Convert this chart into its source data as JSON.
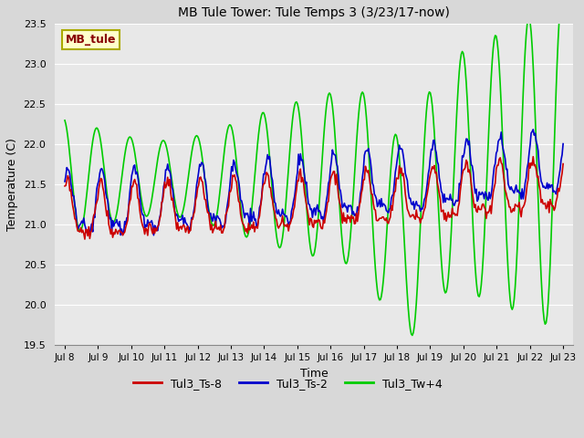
{
  "title": "MB Tule Tower: Tule Temps 3 (3/23/17-now)",
  "xlabel": "Time",
  "ylabel": "Temperature (C)",
  "ylim": [
    19.5,
    23.5
  ],
  "xlim": [
    -0.3,
    15.3
  ],
  "fig_facecolor": "#d8d8d8",
  "plot_facecolor": "#e8e8e8",
  "legend_label": "MB_tule",
  "legend_bg": "#ffffcc",
  "legend_edge": "#aaaa00",
  "legend_text_color": "#880000",
  "series_labels": [
    "Tul3_Ts-8",
    "Tul3_Ts-2",
    "Tul3_Tw+4"
  ],
  "series_colors": [
    "#cc0000",
    "#0000cc",
    "#00cc00"
  ],
  "xtick_labels": [
    "Jul 8",
    "Jul 9",
    "Jul 10",
    "Jul 11",
    "Jul 12",
    "Jul 13",
    "Jul 14",
    "Jul 15",
    "Jul 16",
    "Jul 17",
    "Jul 18",
    "Jul 19",
    "Jul 20",
    "Jul 21",
    "Jul 22",
    "Jul 23"
  ],
  "xtick_positions": [
    0,
    1,
    2,
    3,
    4,
    5,
    6,
    7,
    8,
    9,
    10,
    11,
    12,
    13,
    14,
    15
  ],
  "ytick_positions": [
    19.5,
    20.0,
    20.5,
    21.0,
    21.5,
    22.0,
    22.5,
    23.0,
    23.5
  ],
  "ytick_labels": [
    "19.5",
    "20.0",
    "20.5",
    "21.0",
    "21.5",
    "22.0",
    "22.5",
    "23.0",
    "23.5"
  ]
}
